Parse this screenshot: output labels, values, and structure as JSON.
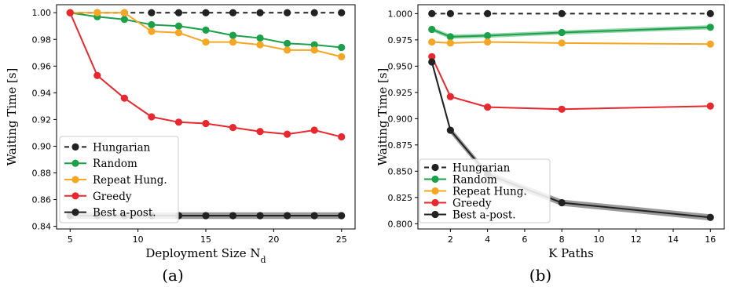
{
  "chart_data": [
    {
      "type": "line",
      "panel_label": "(a)",
      "xlabel": "Deployment Size N",
      "xlabel_sub": "d",
      "ylabel": "Waiting Time [s]",
      "xlim": [
        4,
        26
      ],
      "ylim": [
        0.838,
        1.006
      ],
      "xticks": [
        5,
        10,
        15,
        20,
        25
      ],
      "yticks": [
        0.84,
        0.86,
        0.88,
        0.9,
        0.92,
        0.94,
        0.96,
        0.98,
        1.0
      ],
      "ytick_labels": [
        "0.84",
        "0.86",
        "0.88",
        "0.90",
        "0.92",
        "0.94",
        "0.96",
        "0.98",
        "1.00"
      ],
      "legend_position": "lower-left",
      "x": [
        5,
        7,
        9,
        11,
        13,
        15,
        17,
        19,
        21,
        23,
        25
      ],
      "series": [
        {
          "name": "Hungarian",
          "color": "#222222",
          "style": "dashed",
          "values": [
            1.0,
            1.0,
            1.0,
            1.0,
            1.0,
            1.0,
            1.0,
            1.0,
            1.0,
            1.0,
            1.0
          ]
        },
        {
          "name": "Random",
          "color": "#1aa14a",
          "style": "solid",
          "values": [
            1.0,
            0.997,
            0.995,
            0.991,
            0.99,
            0.987,
            0.983,
            0.981,
            0.977,
            0.976,
            0.974
          ]
        },
        {
          "name": "Repeat Hung.",
          "color": "#f5a623",
          "style": "solid",
          "values": [
            1.0,
            1.0,
            1.0,
            0.986,
            0.985,
            0.978,
            0.978,
            0.976,
            0.972,
            0.972,
            0.967
          ]
        },
        {
          "name": "Greedy",
          "color": "#e8282e",
          "style": "solid",
          "values": [
            1.0,
            0.953,
            0.936,
            0.922,
            0.918,
            0.917,
            0.914,
            0.911,
            0.909,
            0.912,
            0.907
          ]
        },
        {
          "name": "Best a-post.",
          "color": "#222222",
          "style": "solid",
          "band": 0.0025,
          "values": [
            0.848,
            0.848,
            0.848,
            0.848,
            0.848,
            0.848,
            0.848,
            0.848,
            0.848,
            0.848,
            0.848
          ]
        }
      ]
    },
    {
      "type": "line",
      "panel_label": "(b)",
      "xlabel": "K Paths",
      "ylabel": "Waiting Time [s]",
      "xlim": [
        0.25,
        16.75
      ],
      "ylim": [
        0.795,
        1.0085
      ],
      "xticks": [
        2,
        4,
        6,
        8,
        10,
        12,
        14,
        16
      ],
      "yticks": [
        0.8,
        0.825,
        0.85,
        0.875,
        0.9,
        0.925,
        0.95,
        0.975,
        1.0
      ],
      "ytick_labels": [
        "0.800",
        "0.825",
        "0.850",
        "0.875",
        "0.900",
        "0.925",
        "0.950",
        "0.975",
        "1.000"
      ],
      "legend_position": "lower-left",
      "x": [
        1,
        2,
        4,
        8,
        16
      ],
      "series": [
        {
          "name": "Hungarian",
          "color": "#222222",
          "style": "dashed",
          "values": [
            1.0,
            1.0,
            1.0,
            1.0,
            1.0
          ]
        },
        {
          "name": "Random",
          "color": "#1aa14a",
          "style": "solid",
          "band": 0.002,
          "values": [
            0.985,
            0.978,
            0.979,
            0.982,
            0.987
          ]
        },
        {
          "name": "Repeat Hung.",
          "color": "#f5a623",
          "style": "solid",
          "values": [
            0.973,
            0.972,
            0.973,
            0.972,
            0.971
          ]
        },
        {
          "name": "Greedy",
          "color": "#e8282e",
          "style": "solid",
          "values": [
            0.959,
            0.921,
            0.911,
            0.909,
            0.912
          ]
        },
        {
          "name": "Best a-post.",
          "color": "#222222",
          "style": "solid",
          "band": 0.003,
          "values": [
            0.954,
            0.889,
            0.847,
            0.82,
            0.806
          ]
        }
      ]
    }
  ]
}
